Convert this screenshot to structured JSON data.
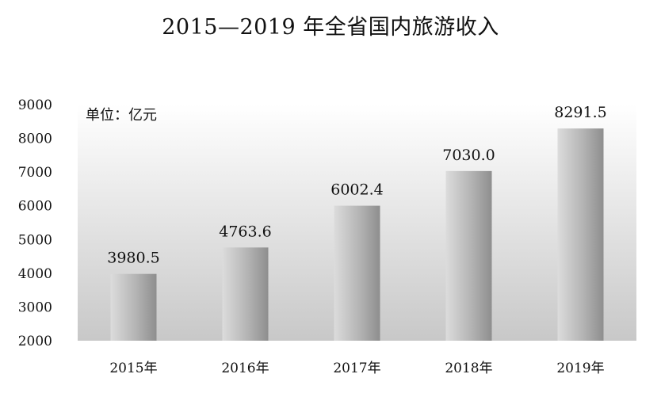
{
  "chart_data": {
    "type": "bar",
    "title": "2015—2019 年全省国内旅游收入",
    "unit_note": "单位：亿元",
    "categories": [
      "2015年",
      "2016年",
      "2017年",
      "2018年",
      "2019年"
    ],
    "values": [
      3980.5,
      4763.6,
      6002.4,
      7030.0,
      8291.5
    ],
    "value_labels": [
      "3980.5",
      "4763.6",
      "6002.4",
      "7030.0",
      "8291.5"
    ],
    "ylim": [
      2000,
      9000
    ],
    "yticks": [
      2000,
      3000,
      4000,
      5000,
      6000,
      7000,
      8000,
      9000
    ],
    "xlabel": "",
    "ylabel": "",
    "grid": false,
    "legend": "none",
    "colors": {
      "bar_light": "#dcdcdc",
      "bar_dark": "#8e8e8e",
      "plot_bg_top": "#ffffff",
      "plot_bg_bottom": "#c8c8c8"
    }
  }
}
